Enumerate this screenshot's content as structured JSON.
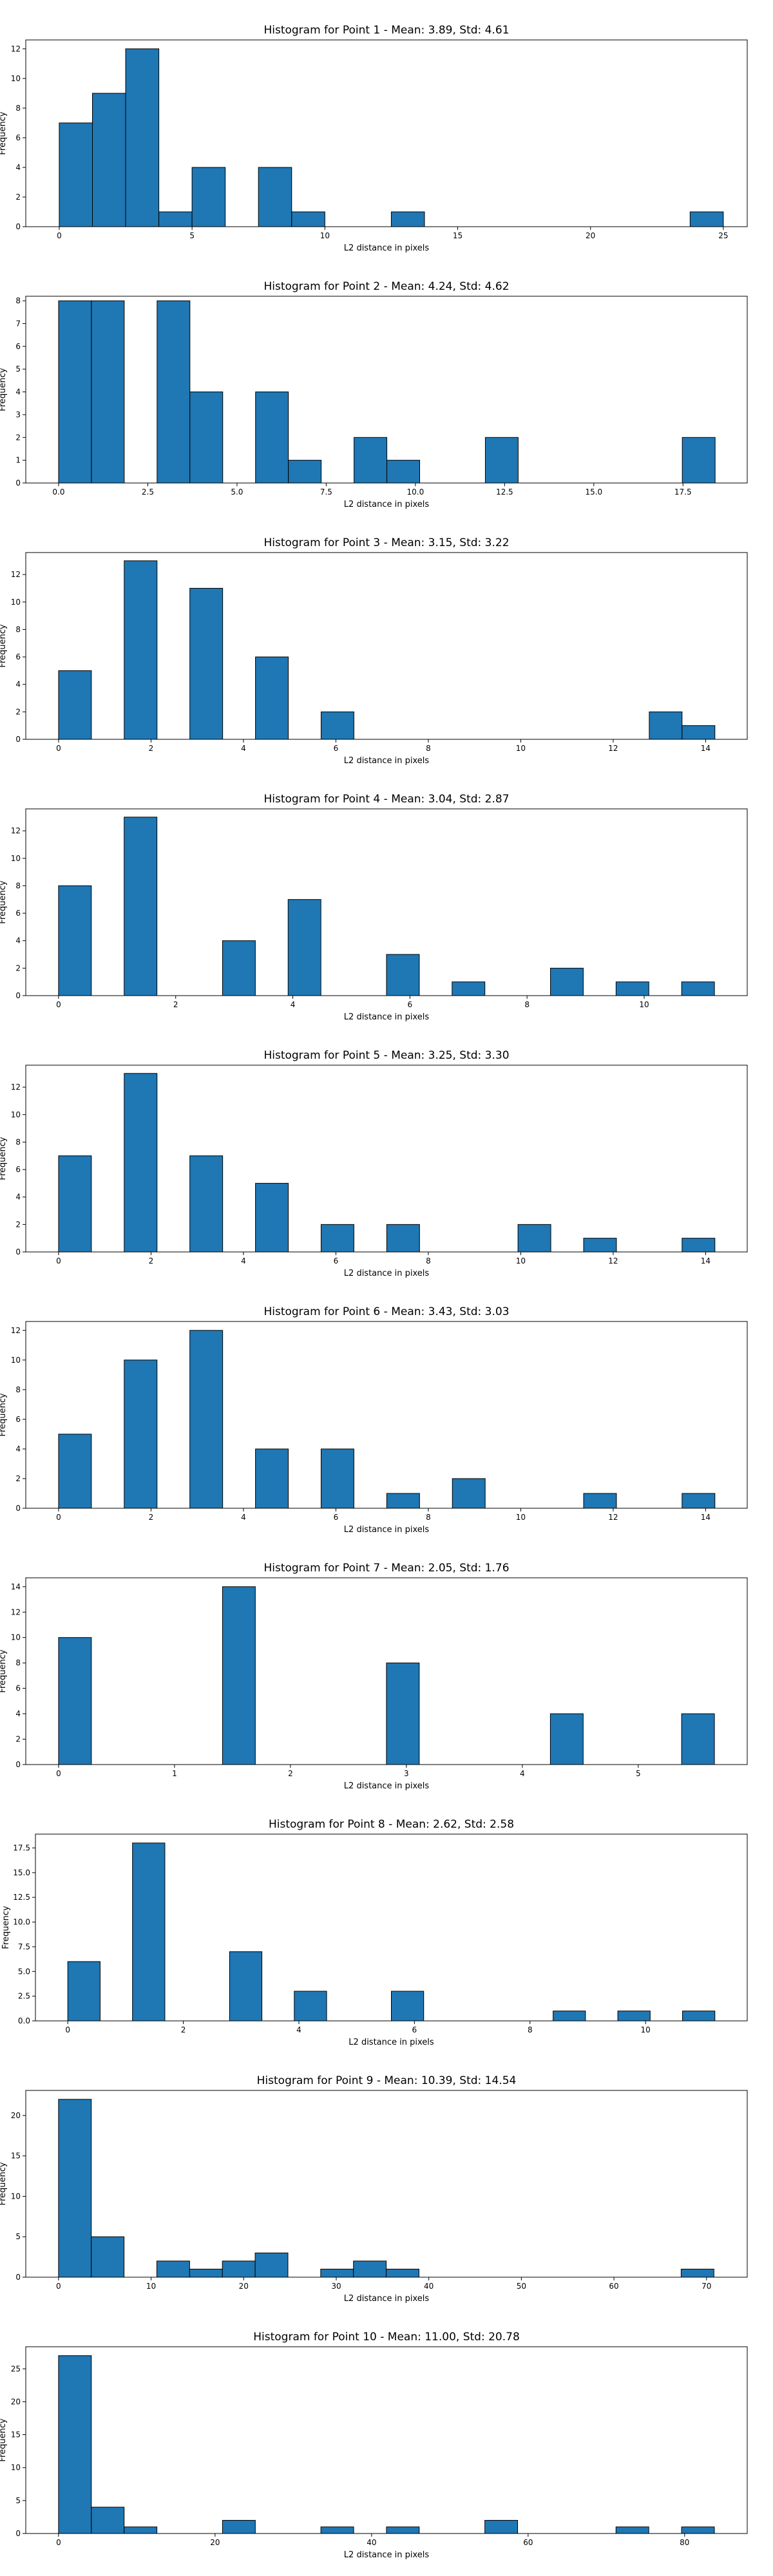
{
  "chart_data": [
    {
      "type": "bar",
      "title": "Histogram for Point 1 - Mean: 3.89, Std: 4.61",
      "xlabel": "L2 distance in pixels",
      "ylabel": "Frequency",
      "xlim": [
        -1.26,
        25.9
      ],
      "ylim": [
        0,
        12.6
      ],
      "xticks": [
        0,
        5,
        10,
        15,
        20,
        25
      ],
      "xtick_labels": [
        "0",
        "5",
        "10",
        "15",
        "20",
        "25"
      ],
      "yticks": [
        0,
        2,
        4,
        6,
        8,
        10,
        12
      ],
      "ytick_labels": [
        "0",
        "2",
        "4",
        "6",
        "8",
        "10",
        "12"
      ],
      "bins": [
        {
          "x0": 0,
          "x1": 1.25,
          "value": 7
        },
        {
          "x0": 1.25,
          "x1": 2.5,
          "value": 9
        },
        {
          "x0": 2.5,
          "x1": 3.75,
          "value": 12
        },
        {
          "x0": 3.75,
          "x1": 5.0,
          "value": 1
        },
        {
          "x0": 5.0,
          "x1": 6.25,
          "value": 4
        },
        {
          "x0": 7.5,
          "x1": 8.75,
          "value": 4
        },
        {
          "x0": 8.75,
          "x1": 10.0,
          "value": 1
        },
        {
          "x0": 12.5,
          "x1": 13.75,
          "value": 1
        },
        {
          "x0": 23.75,
          "x1": 25.0,
          "value": 1
        }
      ],
      "grid": false
    },
    {
      "type": "bar",
      "title": "Histogram for Point 2 - Mean: 4.24, Std: 4.62",
      "xlabel": "L2 distance in pixels",
      "ylabel": "Frequency",
      "xlim": [
        -0.92,
        19.3
      ],
      "ylim": [
        0,
        8.2
      ],
      "xticks": [
        0,
        2.5,
        5,
        7.5,
        10,
        12.5,
        15,
        17.5
      ],
      "xtick_labels": [
        "0.0",
        "2.5",
        "5.0",
        "7.5",
        "10.0",
        "12.5",
        "15.0",
        "17.5"
      ],
      "yticks": [
        0,
        1,
        2,
        3,
        4,
        5,
        6,
        7,
        8
      ],
      "ytick_labels": [
        "0",
        "1",
        "2",
        "3",
        "4",
        "5",
        "6",
        "7",
        "8"
      ],
      "bins": [
        {
          "x0": 0,
          "x1": 0.92,
          "value": 8
        },
        {
          "x0": 0.92,
          "x1": 1.84,
          "value": 8
        },
        {
          "x0": 2.76,
          "x1": 3.68,
          "value": 8
        },
        {
          "x0": 3.68,
          "x1": 4.6,
          "value": 4
        },
        {
          "x0": 5.52,
          "x1": 6.44,
          "value": 4
        },
        {
          "x0": 6.44,
          "x1": 7.36,
          "value": 1
        },
        {
          "x0": 8.28,
          "x1": 9.2,
          "value": 2
        },
        {
          "x0": 9.2,
          "x1": 10.12,
          "value": 1
        },
        {
          "x0": 11.96,
          "x1": 12.88,
          "value": 2
        },
        {
          "x0": 17.48,
          "x1": 18.4,
          "value": 2
        }
      ],
      "grid": false
    },
    {
      "type": "bar",
      "title": "Histogram for Point 3 - Mean: 3.15, Std: 3.22",
      "xlabel": "L2 distance in pixels",
      "ylabel": "Frequency",
      "xlim": [
        -0.71,
        14.9
      ],
      "ylim": [
        0,
        13.6
      ],
      "xticks": [
        0,
        2,
        4,
        6,
        8,
        10,
        12,
        14
      ],
      "xtick_labels": [
        "0",
        "2",
        "4",
        "6",
        "8",
        "10",
        "12",
        "14"
      ],
      "yticks": [
        0,
        2,
        4,
        6,
        8,
        10,
        12
      ],
      "ytick_labels": [
        "0",
        "2",
        "4",
        "6",
        "8",
        "10",
        "12"
      ],
      "bins": [
        {
          "x0": 0,
          "x1": 0.71,
          "value": 5
        },
        {
          "x0": 1.42,
          "x1": 2.13,
          "value": 13
        },
        {
          "x0": 2.84,
          "x1": 3.55,
          "value": 11
        },
        {
          "x0": 4.26,
          "x1": 4.97,
          "value": 6
        },
        {
          "x0": 5.68,
          "x1": 6.39,
          "value": 2
        },
        {
          "x0": 12.78,
          "x1": 13.49,
          "value": 2
        },
        {
          "x0": 13.49,
          "x1": 14.2,
          "value": 1
        }
      ],
      "grid": false
    },
    {
      "type": "bar",
      "title": "Histogram for Point 4 - Mean: 3.04, Std: 2.87",
      "xlabel": "L2 distance in pixels",
      "ylabel": "Frequency",
      "xlim": [
        -0.56,
        11.76
      ],
      "ylim": [
        0,
        13.6
      ],
      "xticks": [
        0,
        2,
        4,
        6,
        8,
        10
      ],
      "xtick_labels": [
        "0",
        "2",
        "4",
        "6",
        "8",
        "10"
      ],
      "yticks": [
        0,
        2,
        4,
        6,
        8,
        10,
        12
      ],
      "ytick_labels": [
        "0",
        "2",
        "4",
        "6",
        "8",
        "10",
        "12"
      ],
      "bins": [
        {
          "x0": 0,
          "x1": 0.56,
          "value": 8
        },
        {
          "x0": 1.12,
          "x1": 1.68,
          "value": 13
        },
        {
          "x0": 2.8,
          "x1": 3.36,
          "value": 4
        },
        {
          "x0": 3.92,
          "x1": 4.48,
          "value": 7
        },
        {
          "x0": 5.6,
          "x1": 6.16,
          "value": 3
        },
        {
          "x0": 6.72,
          "x1": 7.28,
          "value": 1
        },
        {
          "x0": 8.4,
          "x1": 8.96,
          "value": 2
        },
        {
          "x0": 9.52,
          "x1": 10.08,
          "value": 1
        },
        {
          "x0": 10.64,
          "x1": 11.2,
          "value": 1
        }
      ],
      "grid": false
    },
    {
      "type": "bar",
      "title": "Histogram for Point 5 - Mean: 3.25, Std: 3.30",
      "xlabel": "L2 distance in pixels",
      "ylabel": "Frequency",
      "xlim": [
        -0.71,
        14.9
      ],
      "ylim": [
        0,
        13.6
      ],
      "xticks": [
        0,
        2,
        4,
        6,
        8,
        10,
        12,
        14
      ],
      "xtick_labels": [
        "0",
        "2",
        "4",
        "6",
        "8",
        "10",
        "12",
        "14"
      ],
      "yticks": [
        0,
        2,
        4,
        6,
        8,
        10,
        12
      ],
      "ytick_labels": [
        "0",
        "2",
        "4",
        "6",
        "8",
        "10",
        "12"
      ],
      "bins": [
        {
          "x0": 0,
          "x1": 0.71,
          "value": 7
        },
        {
          "x0": 1.42,
          "x1": 2.13,
          "value": 13
        },
        {
          "x0": 2.84,
          "x1": 3.55,
          "value": 7
        },
        {
          "x0": 4.26,
          "x1": 4.97,
          "value": 5
        },
        {
          "x0": 5.68,
          "x1": 6.39,
          "value": 2
        },
        {
          "x0": 7.1,
          "x1": 7.81,
          "value": 2
        },
        {
          "x0": 9.94,
          "x1": 10.65,
          "value": 2
        },
        {
          "x0": 11.36,
          "x1": 12.07,
          "value": 1
        },
        {
          "x0": 13.49,
          "x1": 14.2,
          "value": 1
        }
      ],
      "grid": false
    },
    {
      "type": "bar",
      "title": "Histogram for Point 6 - Mean: 3.43, Std: 3.03",
      "xlabel": "L2 distance in pixels",
      "ylabel": "Frequency",
      "xlim": [
        -0.71,
        14.9
      ],
      "ylim": [
        0,
        12.6
      ],
      "xticks": [
        0,
        2,
        4,
        6,
        8,
        10,
        12,
        14
      ],
      "xtick_labels": [
        "0",
        "2",
        "4",
        "6",
        "8",
        "10",
        "12",
        "14"
      ],
      "yticks": [
        0,
        2,
        4,
        6,
        8,
        10,
        12
      ],
      "ytick_labels": [
        "0",
        "2",
        "4",
        "6",
        "8",
        "10",
        "12"
      ],
      "bins": [
        {
          "x0": 0,
          "x1": 0.71,
          "value": 5
        },
        {
          "x0": 1.42,
          "x1": 2.13,
          "value": 10
        },
        {
          "x0": 2.84,
          "x1": 3.55,
          "value": 12
        },
        {
          "x0": 4.26,
          "x1": 4.97,
          "value": 4
        },
        {
          "x0": 5.68,
          "x1": 6.39,
          "value": 4
        },
        {
          "x0": 7.1,
          "x1": 7.81,
          "value": 1
        },
        {
          "x0": 8.52,
          "x1": 9.23,
          "value": 2
        },
        {
          "x0": 11.36,
          "x1": 12.07,
          "value": 1
        },
        {
          "x0": 13.49,
          "x1": 14.2,
          "value": 1
        }
      ],
      "grid": false
    },
    {
      "type": "bar",
      "title": "Histogram for Point 7 - Mean: 2.05, Std: 1.76",
      "xlabel": "L2 distance in pixels",
      "ylabel": "Frequency",
      "xlim": [
        -0.283,
        5.94
      ],
      "ylim": [
        0,
        14.7
      ],
      "xticks": [
        0,
        1,
        2,
        3,
        4,
        5
      ],
      "xtick_labels": [
        "0",
        "1",
        "2",
        "3",
        "4",
        "5"
      ],
      "yticks": [
        0,
        2,
        4,
        6,
        8,
        10,
        12,
        14
      ],
      "ytick_labels": [
        "0",
        "2",
        "4",
        "6",
        "8",
        "10",
        "12",
        "14"
      ],
      "bins": [
        {
          "x0": 0,
          "x1": 0.283,
          "value": 10
        },
        {
          "x0": 1.414,
          "x1": 1.697,
          "value": 14
        },
        {
          "x0": 2.828,
          "x1": 3.111,
          "value": 8
        },
        {
          "x0": 4.242,
          "x1": 4.525,
          "value": 4
        },
        {
          "x0": 5.374,
          "x1": 5.657,
          "value": 4
        }
      ],
      "grid": false
    },
    {
      "type": "bar",
      "title": "Histogram for Point 8 - Mean: 2.62, Std: 2.58",
      "xlabel": "L2 distance in pixels",
      "ylabel": "Frequency",
      "xlim": [
        -0.56,
        11.76
      ],
      "ylim": [
        0,
        18.9
      ],
      "xticks": [
        0,
        2,
        4,
        6,
        8,
        10
      ],
      "xtick_labels": [
        "0",
        "2",
        "4",
        "6",
        "8",
        "10"
      ],
      "yticks": [
        0,
        2.5,
        5,
        7.5,
        10,
        12.5,
        15,
        17.5
      ],
      "ytick_labels": [
        "0.0",
        "2.5",
        "5.0",
        "7.5",
        "10.0",
        "12.5",
        "15.0",
        "17.5"
      ],
      "bins": [
        {
          "x0": 0,
          "x1": 0.56,
          "value": 6
        },
        {
          "x0": 1.12,
          "x1": 1.68,
          "value": 18
        },
        {
          "x0": 2.8,
          "x1": 3.36,
          "value": 7
        },
        {
          "x0": 3.92,
          "x1": 4.48,
          "value": 3
        },
        {
          "x0": 5.6,
          "x1": 6.16,
          "value": 3
        },
        {
          "x0": 8.4,
          "x1": 8.96,
          "value": 1
        },
        {
          "x0": 9.52,
          "x1": 10.08,
          "value": 1
        },
        {
          "x0": 10.64,
          "x1": 11.2,
          "value": 1
        }
      ],
      "grid": false
    },
    {
      "type": "bar",
      "title": "Histogram for Point 9 - Mean: 10.39, Std: 14.54",
      "xlabel": "L2 distance in pixels",
      "ylabel": "Frequency",
      "xlim": [
        -3.54,
        74.4
      ],
      "ylim": [
        0,
        23.1
      ],
      "xticks": [
        0,
        10,
        20,
        30,
        40,
        50,
        60,
        70
      ],
      "xtick_labels": [
        "0",
        "10",
        "20",
        "30",
        "40",
        "50",
        "60",
        "70"
      ],
      "yticks": [
        0,
        5,
        10,
        15,
        20
      ],
      "ytick_labels": [
        "0",
        "5",
        "10",
        "15",
        "20"
      ],
      "bins": [
        {
          "x0": 0,
          "x1": 3.54,
          "value": 22
        },
        {
          "x0": 3.54,
          "x1": 7.08,
          "value": 5
        },
        {
          "x0": 10.62,
          "x1": 14.16,
          "value": 2
        },
        {
          "x0": 14.16,
          "x1": 17.7,
          "value": 1
        },
        {
          "x0": 17.7,
          "x1": 21.24,
          "value": 2
        },
        {
          "x0": 21.24,
          "x1": 24.78,
          "value": 3
        },
        {
          "x0": 28.32,
          "x1": 31.86,
          "value": 1
        },
        {
          "x0": 31.86,
          "x1": 35.4,
          "value": 2
        },
        {
          "x0": 35.4,
          "x1": 38.94,
          "value": 1
        },
        {
          "x0": 67.26,
          "x1": 70.8,
          "value": 1
        }
      ],
      "grid": false
    },
    {
      "type": "bar",
      "title": "Histogram for Point 10 - Mean: 11.00, Std: 20.78",
      "xlabel": "L2 distance in pixels",
      "ylabel": "Frequency",
      "xlim": [
        -4.19,
        88.0
      ],
      "ylim": [
        0,
        28.35
      ],
      "xticks": [
        0,
        20,
        40,
        60,
        80
      ],
      "xtick_labels": [
        "0",
        "20",
        "40",
        "60",
        "80"
      ],
      "yticks": [
        0,
        5,
        10,
        15,
        20,
        25
      ],
      "ytick_labels": [
        "0",
        "5",
        "10",
        "15",
        "20",
        "25"
      ],
      "bins": [
        {
          "x0": 0,
          "x1": 4.19,
          "value": 27
        },
        {
          "x0": 4.19,
          "x1": 8.38,
          "value": 4
        },
        {
          "x0": 8.38,
          "x1": 12.57,
          "value": 1
        },
        {
          "x0": 20.95,
          "x1": 25.14,
          "value": 2
        },
        {
          "x0": 33.52,
          "x1": 37.71,
          "value": 1
        },
        {
          "x0": 41.9,
          "x1": 46.09,
          "value": 1
        },
        {
          "x0": 54.47,
          "x1": 58.66,
          "value": 2
        },
        {
          "x0": 71.23,
          "x1": 75.42,
          "value": 1
        },
        {
          "x0": 79.61,
          "x1": 83.8,
          "value": 1
        }
      ],
      "grid": false
    }
  ]
}
